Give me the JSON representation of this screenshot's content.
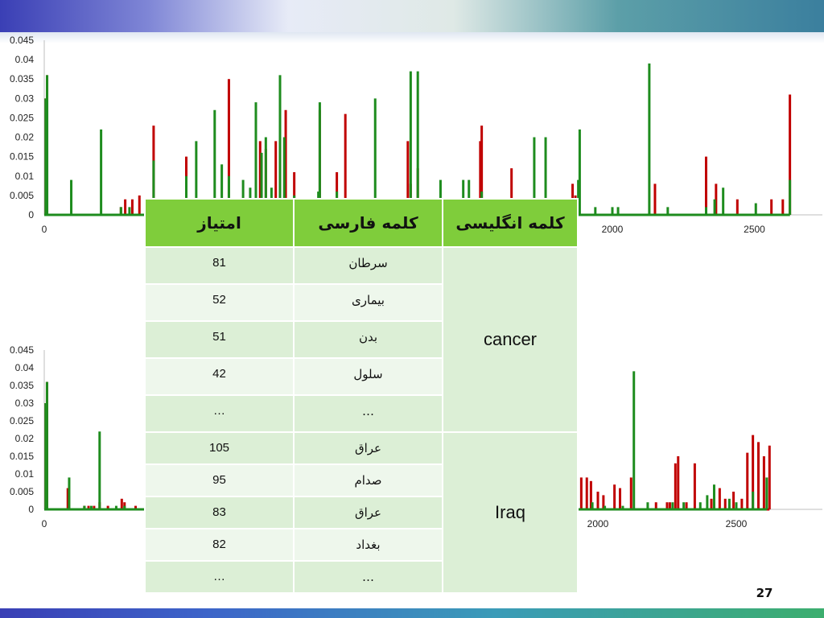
{
  "table": {
    "headers": {
      "english": "کلمه انگلیسی",
      "persian": "کلمه فارسی",
      "score": "امتیاز"
    },
    "groups": [
      {
        "english": "cancer",
        "rows": [
          {
            "persian": "سرطان",
            "score": "81"
          },
          {
            "persian": "بیماری",
            "score": "52"
          },
          {
            "persian": "بدن",
            "score": "51"
          },
          {
            "persian": "سلول",
            "score": "42"
          },
          {
            "persian": "…",
            "score": "…"
          }
        ]
      },
      {
        "english": "Iraq",
        "rows": [
          {
            "persian": "عراق",
            "score": "105"
          },
          {
            "persian": "صدام",
            "score": "95"
          },
          {
            "persian": "عراق",
            "score": "83"
          },
          {
            "persian": "بغداد",
            "score": "82"
          },
          {
            "persian": "…",
            "score": "…"
          }
        ]
      }
    ]
  },
  "page_number": "27",
  "colors": {
    "series_red": "#c00000",
    "series_green": "#1e8c1e",
    "header_green": "#7fcd3b"
  },
  "chart_data": [
    {
      "type": "line",
      "title": "",
      "xlabel": "",
      "ylabel": "",
      "xlim": [
        0,
        2640
      ],
      "ylim": [
        0,
        0.045
      ],
      "y_ticks": [
        "0",
        "0.005",
        "0.01",
        "0.015",
        "0.02",
        "0.025",
        "0.03",
        "0.035",
        "0.04",
        "0.045"
      ],
      "x_ticks_visible": [
        "0",
        "2000",
        "2500"
      ],
      "grid": false,
      "series": [
        {
          "color": "#c00000",
          "spikes": [
            [
              5,
              0.03
            ],
            [
              10,
              0.036
            ],
            [
              270,
              0.002
            ],
            [
              285,
              0.004
            ],
            [
              310,
              0.004
            ],
            [
              335,
              0.005
            ],
            [
              385,
              0.023
            ],
            [
              500,
              0.015
            ],
            [
              650,
              0.035
            ],
            [
              760,
              0.019
            ],
            [
              780,
              0.017
            ],
            [
              815,
              0.019
            ],
            [
              850,
              0.027
            ],
            [
              880,
              0.011
            ],
            [
              970,
              0.027
            ],
            [
              1030,
              0.011
            ],
            [
              1060,
              0.026
            ],
            [
              1280,
              0.019
            ],
            [
              1290,
              0.008
            ],
            [
              1315,
              0.012
            ],
            [
              1535,
              0.019
            ],
            [
              1540,
              0.023
            ],
            [
              1645,
              0.012
            ],
            [
              1860,
              0.008
            ],
            [
              1870,
              0.005
            ],
            [
              2150,
              0.008
            ],
            [
              2330,
              0.015
            ],
            [
              2365,
              0.008
            ],
            [
              2440,
              0.004
            ],
            [
              2560,
              0.004
            ],
            [
              2600,
              0.004
            ],
            [
              2625,
              0.031
            ]
          ]
        },
        {
          "color": "#1e8c1e",
          "spikes": [
            [
              5,
              0.03
            ],
            [
              10,
              0.036
            ],
            [
              95,
              0.009
            ],
            [
              200,
              0.022
            ],
            [
              270,
              0.002
            ],
            [
              300,
              0.002
            ],
            [
              385,
              0.014
            ],
            [
              500,
              0.01
            ],
            [
              535,
              0.019
            ],
            [
              600,
              0.027
            ],
            [
              625,
              0.013
            ],
            [
              650,
              0.01
            ],
            [
              700,
              0.009
            ],
            [
              725,
              0.007
            ],
            [
              745,
              0.029
            ],
            [
              765,
              0.016
            ],
            [
              780,
              0.02
            ],
            [
              800,
              0.007
            ],
            [
              830,
              0.036
            ],
            [
              845,
              0.02
            ],
            [
              880,
              0.005
            ],
            [
              965,
              0.006
            ],
            [
              970,
              0.029
            ],
            [
              1030,
              0.006
            ],
            [
              1165,
              0.03
            ],
            [
              1290,
              0.037
            ],
            [
              1315,
              0.037
            ],
            [
              1395,
              0.009
            ],
            [
              1475,
              0.009
            ],
            [
              1495,
              0.009
            ],
            [
              1540,
              0.006
            ],
            [
              1725,
              0.02
            ],
            [
              1765,
              0.02
            ],
            [
              1880,
              0.009
            ],
            [
              1885,
              0.022
            ],
            [
              1940,
              0.002
            ],
            [
              2000,
              0.002
            ],
            [
              2020,
              0.002
            ],
            [
              2130,
              0.039
            ],
            [
              2195,
              0.002
            ],
            [
              2330,
              0.002
            ],
            [
              2360,
              0.004
            ],
            [
              2390,
              0.007
            ],
            [
              2505,
              0.003
            ],
            [
              2625,
              0.009
            ]
          ]
        }
      ]
    },
    {
      "type": "line",
      "title": "",
      "xlabel": "",
      "ylabel": "",
      "xlim": [
        0,
        2640
      ],
      "ylim": [
        0,
        0.045
      ],
      "y_ticks": [
        "0",
        "0.005",
        "0.01",
        "0.015",
        "0.02",
        "0.025",
        "0.03",
        "0.035",
        "0.04",
        "0.045"
      ],
      "x_ticks_visible": [
        "0",
        "2000",
        "2500"
      ],
      "grid": false,
      "series": [
        {
          "color": "#c00000",
          "spikes": [
            [
              5,
              0.03
            ],
            [
              10,
              0.036
            ],
            [
              85,
              0.006
            ],
            [
              145,
              0.001
            ],
            [
              160,
              0.001
            ],
            [
              180,
              0.001
            ],
            [
              200,
              0.002
            ],
            [
              230,
              0.001
            ],
            [
              280,
              0.003
            ],
            [
              290,
              0.002
            ],
            [
              330,
              0.001
            ],
            [
              1940,
              0.009
            ],
            [
              1960,
              0.009
            ],
            [
              1975,
              0.008
            ],
            [
              2000,
              0.005
            ],
            [
              2020,
              0.004
            ],
            [
              2060,
              0.007
            ],
            [
              2080,
              0.006
            ],
            [
              2120,
              0.009
            ],
            [
              2210,
              0.002
            ],
            [
              2250,
              0.002
            ],
            [
              2260,
              0.002
            ],
            [
              2280,
              0.013
            ],
            [
              2290,
              0.015
            ],
            [
              2320,
              0.002
            ],
            [
              2350,
              0.013
            ],
            [
              2410,
              0.003
            ],
            [
              2420,
              0.002
            ],
            [
              2440,
              0.006
            ],
            [
              2460,
              0.003
            ],
            [
              2490,
              0.005
            ],
            [
              2520,
              0.003
            ],
            [
              2540,
              0.016
            ],
            [
              2560,
              0.021
            ],
            [
              2580,
              0.019
            ],
            [
              2600,
              0.015
            ],
            [
              2620,
              0.018
            ]
          ]
        },
        {
          "color": "#1e8c1e",
          "spikes": [
            [
              5,
              0.03
            ],
            [
              10,
              0.036
            ],
            [
              90,
              0.009
            ],
            [
              145,
              0.001
            ],
            [
              170,
              0.001
            ],
            [
              200,
              0.022
            ],
            [
              260,
              0.001
            ],
            [
              290,
              0.001
            ],
            [
              1980,
              0.002
            ],
            [
              2025,
              0.001
            ],
            [
              2090,
              0.001
            ],
            [
              2130,
              0.039
            ],
            [
              2180,
              0.002
            ],
            [
              2270,
              0.002
            ],
            [
              2310,
              0.002
            ],
            [
              2370,
              0.002
            ],
            [
              2395,
              0.004
            ],
            [
              2420,
              0.007
            ],
            [
              2475,
              0.003
            ],
            [
              2500,
              0.002
            ],
            [
              2560,
              0.005
            ],
            [
              2610,
              0.009
            ]
          ]
        }
      ]
    }
  ]
}
